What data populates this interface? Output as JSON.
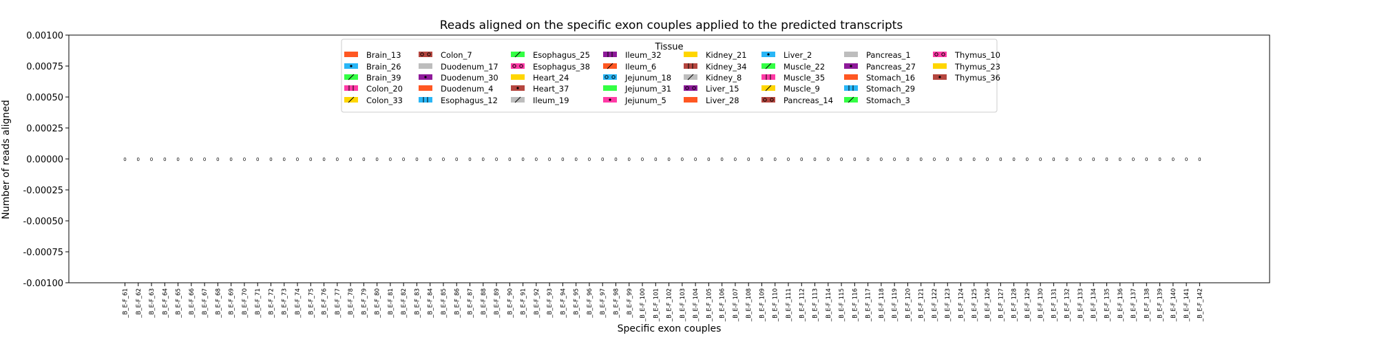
{
  "chart_data": {
    "type": "bar",
    "title": "Reads aligned on the specific exon couples applied to the predicted transcripts",
    "xlabel": "Specific exon couples",
    "ylabel": "Number of reads aligned",
    "ylim": [
      -0.001,
      0.001
    ],
    "yticks": [
      "0.00100",
      "0.00075",
      "0.00050",
      "0.00025",
      "0.00000",
      "-0.00025",
      "-0.00050",
      "-0.00075",
      "-0.00100"
    ],
    "grid": false,
    "legend_title": "Tissue",
    "legend_position": "upper center",
    "categories": [
      "_B_E-F_61",
      "_B_E-F_62",
      "_B_E-F_63",
      "_B_E-F_64",
      "_B_E-F_65",
      "_B_E-F_66",
      "_B_E-F_67",
      "_B_E-F_68",
      "_B_E-F_69",
      "_B_E-F_70",
      "_B_E-F_71",
      "_B_E-F_72",
      "_B_E-F_73",
      "_B_E-F_74",
      "_B_E-F_75",
      "_B_E-F_76",
      "_B_E-F_77",
      "_B_E-F_78",
      "_B_E-F_79",
      "_B_E-F_80",
      "_B_E-F_81",
      "_B_E-F_82",
      "_B_E-F_83",
      "_B_E-F_84",
      "_B_E-F_85",
      "_B_E-F_86",
      "_B_E-F_87",
      "_B_E-F_88",
      "_B_E-F_89",
      "_B_E-F_90",
      "_B_E-F_91",
      "_B_E-F_92",
      "_B_E-F_93",
      "_B_E-F_94",
      "_B_E-F_95",
      "_B_E-F_96",
      "_B_E-F_97",
      "_B_E-F_98",
      "_B_E-F_99",
      "_B_E-F_100",
      "_B_E-F_101",
      "_B_E-F_102",
      "_B_E-F_103",
      "_B_E-F_104",
      "_B_E-F_105",
      "_B_E-F_106",
      "_B_E-F_107",
      "_B_E-F_108",
      "_B_E-F_109",
      "_B_E-F_110",
      "_B_E-F_111",
      "_B_E-F_112",
      "_B_E-F_113",
      "_B_E-F_114",
      "_B_E-F_115",
      "_B_E-F_116",
      "_B_E-F_117",
      "_B_E-F_118",
      "_B_E-F_119",
      "_B_E-F_120",
      "_B_E-F_121",
      "_B_E-F_122",
      "_B_E-F_123",
      "_B_E-F_124",
      "_B_E-F_125",
      "_B_E-F_126",
      "_B_E-F_127",
      "_B_E-F_128",
      "_B_E-F_129",
      "_B_E-F_130",
      "_B_E-F_131",
      "_B_E-F_132",
      "_B_E-F_133",
      "_B_E-F_134",
      "_B_E-F_135",
      "_B_E-F_136",
      "_B_E-F_137",
      "_B_E-F_138",
      "_B_E-F_139",
      "_B_E-F_140",
      "_B_E-F_141",
      "_B_E-F_142"
    ],
    "bar_label": "0",
    "series": [
      {
        "name": "Brain_13",
        "color": "#ff5722",
        "hatch": ""
      },
      {
        "name": "Brain_26",
        "color": "#29b6f6",
        "hatch": "*"
      },
      {
        "name": "Brain_39",
        "color": "#33ff44",
        "hatch": "/"
      },
      {
        "name": "Colon_20",
        "color": "#ff3aa6",
        "hatch": "|"
      },
      {
        "name": "Colon_33",
        "color": "#ffd600",
        "hatch": "/"
      },
      {
        "name": "Colon_7",
        "color": "#b5463f",
        "hatch": "o"
      },
      {
        "name": "Duodenum_17",
        "color": "#bdbdbd",
        "hatch": ""
      },
      {
        "name": "Duodenum_30",
        "color": "#8e1a9a",
        "hatch": "*"
      },
      {
        "name": "Duodenum_4",
        "color": "#ff5722",
        "hatch": ""
      },
      {
        "name": "Esophagus_12",
        "color": "#29b6f6",
        "hatch": "|"
      },
      {
        "name": "Esophagus_25",
        "color": "#33ff44",
        "hatch": "/"
      },
      {
        "name": "Esophagus_38",
        "color": "#ff3aa6",
        "hatch": "o"
      },
      {
        "name": "Heart_24",
        "color": "#ffd600",
        "hatch": ""
      },
      {
        "name": "Heart_37",
        "color": "#b5463f",
        "hatch": "*"
      },
      {
        "name": "Ileum_19",
        "color": "#bdbdbd",
        "hatch": "/"
      },
      {
        "name": "Ileum_32",
        "color": "#8e1a9a",
        "hatch": "|"
      },
      {
        "name": "Ileum_6",
        "color": "#ff5722",
        "hatch": "/"
      },
      {
        "name": "Jejunum_18",
        "color": "#29b6f6",
        "hatch": "o"
      },
      {
        "name": "Jejunum_31",
        "color": "#33ff44",
        "hatch": ""
      },
      {
        "name": "Jejunum_5",
        "color": "#ff3aa6",
        "hatch": "*"
      },
      {
        "name": "Kidney_21",
        "color": "#ffd600",
        "hatch": ""
      },
      {
        "name": "Kidney_34",
        "color": "#b5463f",
        "hatch": "|"
      },
      {
        "name": "Kidney_8",
        "color": "#bdbdbd",
        "hatch": "/"
      },
      {
        "name": "Liver_15",
        "color": "#8e1a9a",
        "hatch": "o"
      },
      {
        "name": "Liver_28",
        "color": "#ff5722",
        "hatch": ""
      },
      {
        "name": "Liver_2",
        "color": "#29b6f6",
        "hatch": "*"
      },
      {
        "name": "Muscle_22",
        "color": "#33ff44",
        "hatch": "/"
      },
      {
        "name": "Muscle_35",
        "color": "#ff3aa6",
        "hatch": "|"
      },
      {
        "name": "Muscle_9",
        "color": "#ffd600",
        "hatch": "/"
      },
      {
        "name": "Pancreas_14",
        "color": "#b5463f",
        "hatch": "o"
      },
      {
        "name": "Pancreas_1",
        "color": "#bdbdbd",
        "hatch": ""
      },
      {
        "name": "Pancreas_27",
        "color": "#8e1a9a",
        "hatch": "*"
      },
      {
        "name": "Stomach_16",
        "color": "#ff5722",
        "hatch": ""
      },
      {
        "name": "Stomach_29",
        "color": "#29b6f6",
        "hatch": "|"
      },
      {
        "name": "Stomach_3",
        "color": "#33ff44",
        "hatch": "/"
      },
      {
        "name": "Thymus_10",
        "color": "#ff3aa6",
        "hatch": "o"
      },
      {
        "name": "Thymus_23",
        "color": "#ffd600",
        "hatch": ""
      },
      {
        "name": "Thymus_36",
        "color": "#b5463f",
        "hatch": "*"
      }
    ],
    "values_note_all_zero": true
  }
}
